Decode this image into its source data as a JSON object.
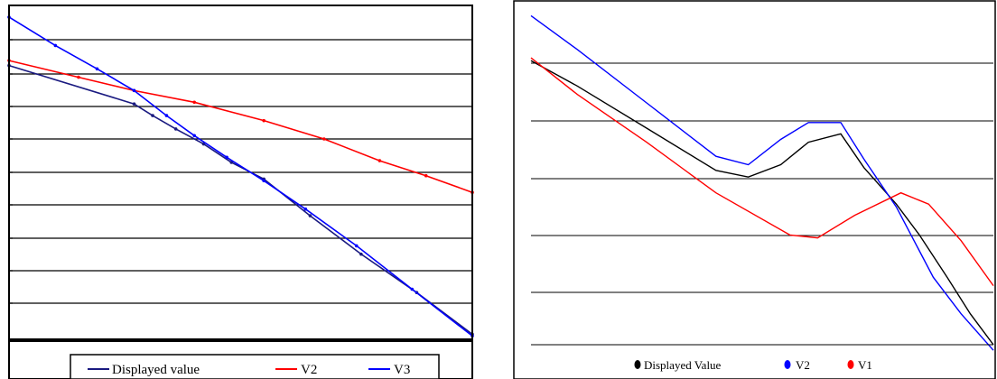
{
  "chart_data": [
    {
      "type": "line",
      "title": "",
      "xlabel": "",
      "ylabel": "",
      "grid": true,
      "legend_placement": "bottom",
      "series": [
        {
          "name": "Displayed value",
          "color": "#1a1a80",
          "points": [
            [
              0.0,
              8.2
            ],
            [
              0.27,
              7.05
            ],
            [
              0.31,
              6.7
            ],
            [
              0.36,
              6.3
            ],
            [
              0.42,
              5.85
            ],
            [
              0.48,
              5.3
            ],
            [
              0.55,
              4.8
            ],
            [
              0.65,
              3.7
            ],
            [
              0.76,
              2.55
            ],
            [
              0.88,
              1.4
            ],
            [
              1.0,
              0.15
            ]
          ]
        },
        {
          "name": "V2",
          "color": "#ff0000",
          "points": [
            [
              0.0,
              8.35
            ],
            [
              0.15,
              7.85
            ],
            [
              0.27,
              7.45
            ],
            [
              0.4,
              7.1
            ],
            [
              0.55,
              6.55
            ],
            [
              0.68,
              6.0
            ],
            [
              0.8,
              5.35
            ],
            [
              0.9,
              4.9
            ],
            [
              1.0,
              4.4
            ]
          ]
        },
        {
          "name": "V3",
          "color": "#0000ff",
          "points": [
            [
              0.0,
              9.65
            ],
            [
              0.1,
              8.8
            ],
            [
              0.19,
              8.1
            ],
            [
              0.27,
              7.45
            ],
            [
              0.34,
              6.7
            ],
            [
              0.4,
              6.1
            ],
            [
              0.47,
              5.45
            ],
            [
              0.55,
              4.75
            ],
            [
              0.64,
              3.9
            ],
            [
              0.75,
              2.8
            ],
            [
              0.87,
              1.5
            ],
            [
              1.0,
              0.1
            ]
          ]
        }
      ]
    },
    {
      "type": "line",
      "title": "",
      "xlabel": "",
      "ylabel": "",
      "grid": true,
      "legend_placement": "bottom",
      "series": [
        {
          "name": "Displayed Value",
          "color": "#000000",
          "points": [
            [
              0.0,
              5.05
            ],
            [
              0.1,
              4.6
            ],
            [
              0.25,
              3.85
            ],
            [
              0.4,
              3.1
            ],
            [
              0.47,
              2.98
            ],
            [
              0.54,
              3.2
            ],
            [
              0.6,
              3.6
            ],
            [
              0.67,
              3.75
            ],
            [
              0.72,
              3.15
            ],
            [
              0.79,
              2.5
            ],
            [
              0.84,
              1.95
            ],
            [
              0.9,
              1.2
            ],
            [
              0.95,
              0.55
            ],
            [
              1.0,
              0.0
            ]
          ]
        },
        {
          "name": "V2",
          "color": "#0000ff",
          "points": [
            [
              0.0,
              5.85
            ],
            [
              0.1,
              5.25
            ],
            [
              0.25,
              4.3
            ],
            [
              0.4,
              3.35
            ],
            [
              0.47,
              3.2
            ],
            [
              0.54,
              3.65
            ],
            [
              0.6,
              3.95
            ],
            [
              0.67,
              3.95
            ],
            [
              0.72,
              3.3
            ],
            [
              0.79,
              2.45
            ],
            [
              0.87,
              1.2
            ],
            [
              0.93,
              0.55
            ],
            [
              1.0,
              -0.1
            ]
          ]
        },
        {
          "name": "V1",
          "color": "#ff0000",
          "points": [
            [
              0.0,
              5.1
            ],
            [
              0.1,
              4.45
            ],
            [
              0.25,
              3.6
            ],
            [
              0.4,
              2.7
            ],
            [
              0.56,
              1.95
            ],
            [
              0.62,
              1.9
            ],
            [
              0.7,
              2.3
            ],
            [
              0.8,
              2.7
            ],
            [
              0.86,
              2.5
            ],
            [
              0.93,
              1.85
            ],
            [
              1.0,
              1.05
            ]
          ]
        }
      ]
    }
  ]
}
